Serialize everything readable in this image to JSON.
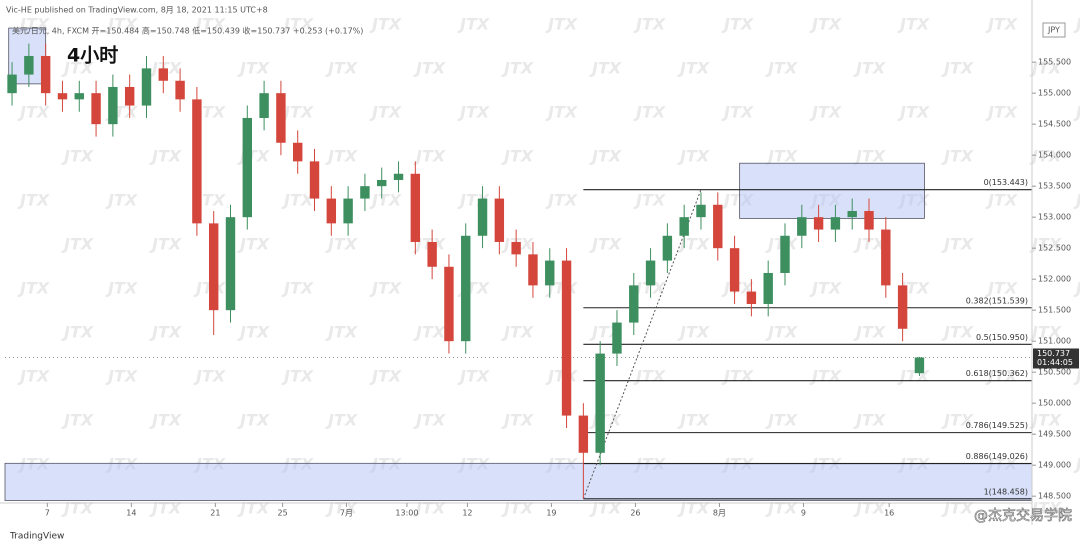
{
  "chart_data": {
    "type": "candlestick",
    "header": "Vic-HE published on TradingView.com, 8月 18, 2021 11:15 UTC+8",
    "legend_line": "美元/日元, 4h, FXCM  开=150.484 高=150.748 低=150.439 收=150.737 +0.253 (+0.17%)",
    "title": "4小时",
    "currency": "JPY",
    "watermark": "JTX",
    "footer_logo": "TradingView",
    "footer_credit": "@杰克交易学院",
    "up_color": "#3d8f5f",
    "down_color": "#d4463c",
    "x": [
      0,
      1,
      2,
      3,
      4,
      5,
      6,
      7,
      8,
      9,
      10,
      11,
      12,
      13,
      14,
      15,
      16,
      17,
      18,
      19,
      20,
      21,
      22,
      23,
      24,
      25,
      26,
      27,
      28,
      29,
      30,
      31,
      32,
      33,
      34,
      35,
      36,
      37,
      38,
      39,
      40,
      41,
      42,
      43,
      44,
      45,
      46,
      47,
      48,
      49,
      50,
      51,
      52,
      53,
      54
    ],
    "open": [
      155.0,
      155.3,
      155.6,
      155.0,
      154.9,
      155.0,
      154.5,
      155.1,
      154.8,
      155.4,
      155.2,
      154.9,
      152.9,
      151.5,
      153.0,
      154.6,
      155.0,
      154.2,
      153.9,
      153.3,
      152.9,
      153.3,
      153.5,
      153.6,
      153.7,
      152.6,
      152.2,
      151.0,
      152.7,
      153.3,
      152.6,
      152.4,
      151.9,
      152.3,
      149.8,
      149.2,
      150.8,
      151.3,
      151.9,
      152.3,
      152.7,
      153.0,
      153.2,
      152.5,
      151.8,
      151.6,
      152.1,
      152.7,
      153.0,
      152.8,
      153.0,
      153.1,
      152.8,
      151.9,
      150.484
    ],
    "high": [
      155.5,
      155.8,
      155.8,
      155.2,
      155.2,
      155.2,
      155.3,
      155.3,
      155.6,
      155.6,
      155.4,
      155.1,
      153.1,
      153.2,
      154.8,
      155.2,
      155.2,
      154.4,
      154.1,
      153.5,
      153.5,
      153.7,
      153.8,
      153.9,
      153.9,
      152.8,
      152.4,
      152.9,
      153.5,
      153.5,
      152.8,
      152.6,
      152.5,
      152.5,
      150.0,
      151.0,
      151.5,
      152.1,
      152.5,
      152.9,
      153.2,
      153.4,
      153.4,
      152.7,
      152.0,
      152.3,
      152.9,
      153.2,
      153.2,
      153.2,
      153.3,
      153.3,
      153.0,
      152.1,
      150.748
    ],
    "low": [
      154.8,
      155.1,
      154.8,
      154.7,
      154.7,
      154.3,
      154.3,
      154.6,
      154.6,
      155.0,
      154.7,
      152.7,
      151.1,
      151.3,
      152.8,
      154.4,
      154.0,
      153.7,
      153.1,
      152.7,
      152.7,
      153.1,
      153.3,
      153.4,
      152.4,
      152.0,
      150.8,
      150.8,
      152.5,
      152.4,
      152.2,
      151.7,
      151.7,
      149.6,
      148.458,
      149.0,
      150.6,
      151.1,
      151.7,
      152.1,
      152.5,
      152.8,
      152.3,
      151.6,
      151.4,
      151.4,
      151.9,
      152.5,
      152.6,
      152.6,
      152.8,
      152.6,
      151.7,
      151.0,
      150.439
    ],
    "close": [
      155.3,
      155.6,
      155.0,
      154.9,
      155.0,
      154.5,
      155.1,
      154.8,
      155.4,
      155.2,
      154.9,
      152.9,
      151.5,
      153.0,
      154.6,
      155.0,
      154.2,
      153.9,
      153.3,
      152.9,
      153.3,
      153.5,
      153.6,
      153.7,
      152.6,
      152.2,
      151.0,
      152.7,
      153.3,
      152.6,
      152.4,
      151.9,
      152.3,
      149.8,
      149.2,
      150.8,
      151.3,
      151.9,
      152.3,
      152.7,
      153.0,
      153.2,
      152.5,
      151.8,
      151.6,
      152.1,
      152.7,
      153.0,
      152.8,
      153.0,
      153.1,
      152.8,
      151.9,
      151.2,
      150.737
    ],
    "xlim": [
      -0.42,
      60.7
    ],
    "xticks": [
      {
        "value": 2.1,
        "label": "7"
      },
      {
        "value": 7.1,
        "label": "14"
      },
      {
        "value": 12.1,
        "label": "21"
      },
      {
        "value": 16.1,
        "label": "25"
      },
      {
        "value": 19.9,
        "label": "7月"
      },
      {
        "value": 23.5,
        "label": "13:00"
      },
      {
        "value": 27.1,
        "label": "12"
      },
      {
        "value": 32.1,
        "label": "19"
      },
      {
        "value": 37.1,
        "label": "26"
      },
      {
        "value": 42.1,
        "label": "8月"
      },
      {
        "value": 47.1,
        "label": "9"
      },
      {
        "value": 52.2,
        "label": "16"
      }
    ],
    "ylim": [
      148.39,
      156.18
    ],
    "yticks": [
      {
        "value": 148.5,
        "label": "148.500"
      },
      {
        "value": 149,
        "label": "149.000"
      },
      {
        "value": 149.5,
        "label": "149.500"
      },
      {
        "value": 150,
        "label": "150.000"
      },
      {
        "value": 150.5,
        "label": "150.500"
      },
      {
        "value": 151,
        "label": "151.000"
      },
      {
        "value": 151.5,
        "label": "151.500"
      },
      {
        "value": 152,
        "label": "152.000"
      },
      {
        "value": 152.5,
        "label": "152.500"
      },
      {
        "value": 153,
        "label": "153.000"
      },
      {
        "value": 153.5,
        "label": "153.500"
      },
      {
        "value": 154,
        "label": "154.000"
      },
      {
        "value": 154.5,
        "label": "154.500"
      },
      {
        "value": 155,
        "label": "155.000"
      },
      {
        "value": 155.5,
        "label": "155.500"
      }
    ],
    "zones": [
      {
        "x": [
          -0.2,
          2.0
        ],
        "y": [
          155.15,
          156.05
        ]
      },
      {
        "x": [
          43.3,
          54.3
        ],
        "y": [
          152.98,
          153.87
        ]
      },
      {
        "x": [
          -0.42,
          60.7
        ],
        "y": [
          148.43,
          149.03
        ]
      }
    ],
    "fib": {
      "x": [
        34,
        41
      ],
      "trend": [
        148.458,
        153.443
      ],
      "levels": [
        {
          "value": 153.443,
          "label": "0(153.443)"
        },
        {
          "value": 151.539,
          "label": "0.382(151.539)"
        },
        {
          "value": 150.95,
          "label": "0.5(150.950)"
        },
        {
          "value": 150.362,
          "label": "0.618(150.362)"
        },
        {
          "value": 149.525,
          "label": "0.786(149.525)"
        },
        {
          "value": 149.026,
          "label": "0.886(149.026)"
        },
        {
          "value": 148.458,
          "label": "1(148.458)"
        }
      ]
    },
    "last_price": {
      "value": 150.737,
      "countdown": "01:44:05"
    }
  }
}
